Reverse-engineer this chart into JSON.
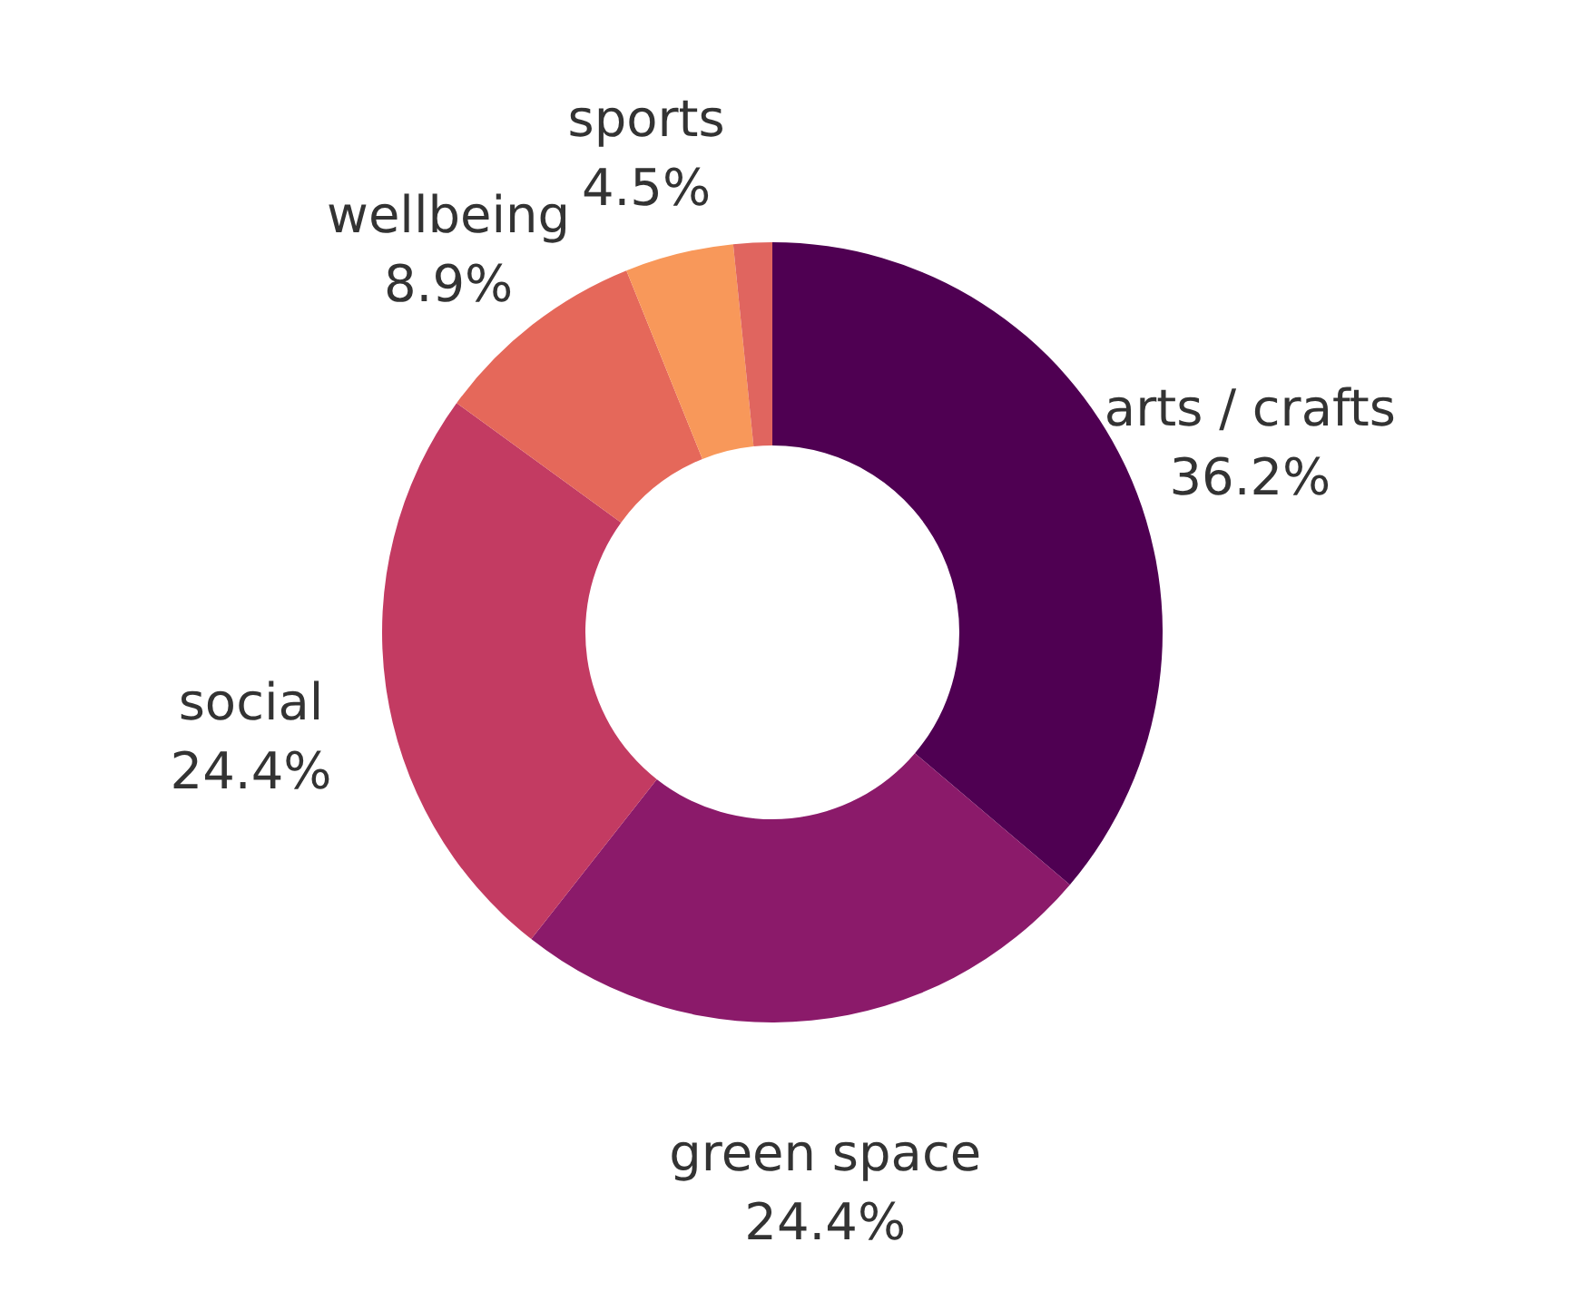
{
  "chart_data": {
    "type": "donut",
    "categories": [
      "arts / crafts",
      "green space",
      "social",
      "wellbeing",
      "sports",
      null
    ],
    "values": [
      36.2,
      24.4,
      24.4,
      8.9,
      4.5,
      1.6
    ],
    "value_labels": [
      "36.2%",
      "24.4%",
      "24.4%",
      "8.9%",
      "4.5%",
      null
    ],
    "colors": [
      "#4f0052",
      "#8b1a6a",
      "#c33b62",
      "#e5685a",
      "#f8985a",
      "#e0655f"
    ],
    "legend": false
  }
}
